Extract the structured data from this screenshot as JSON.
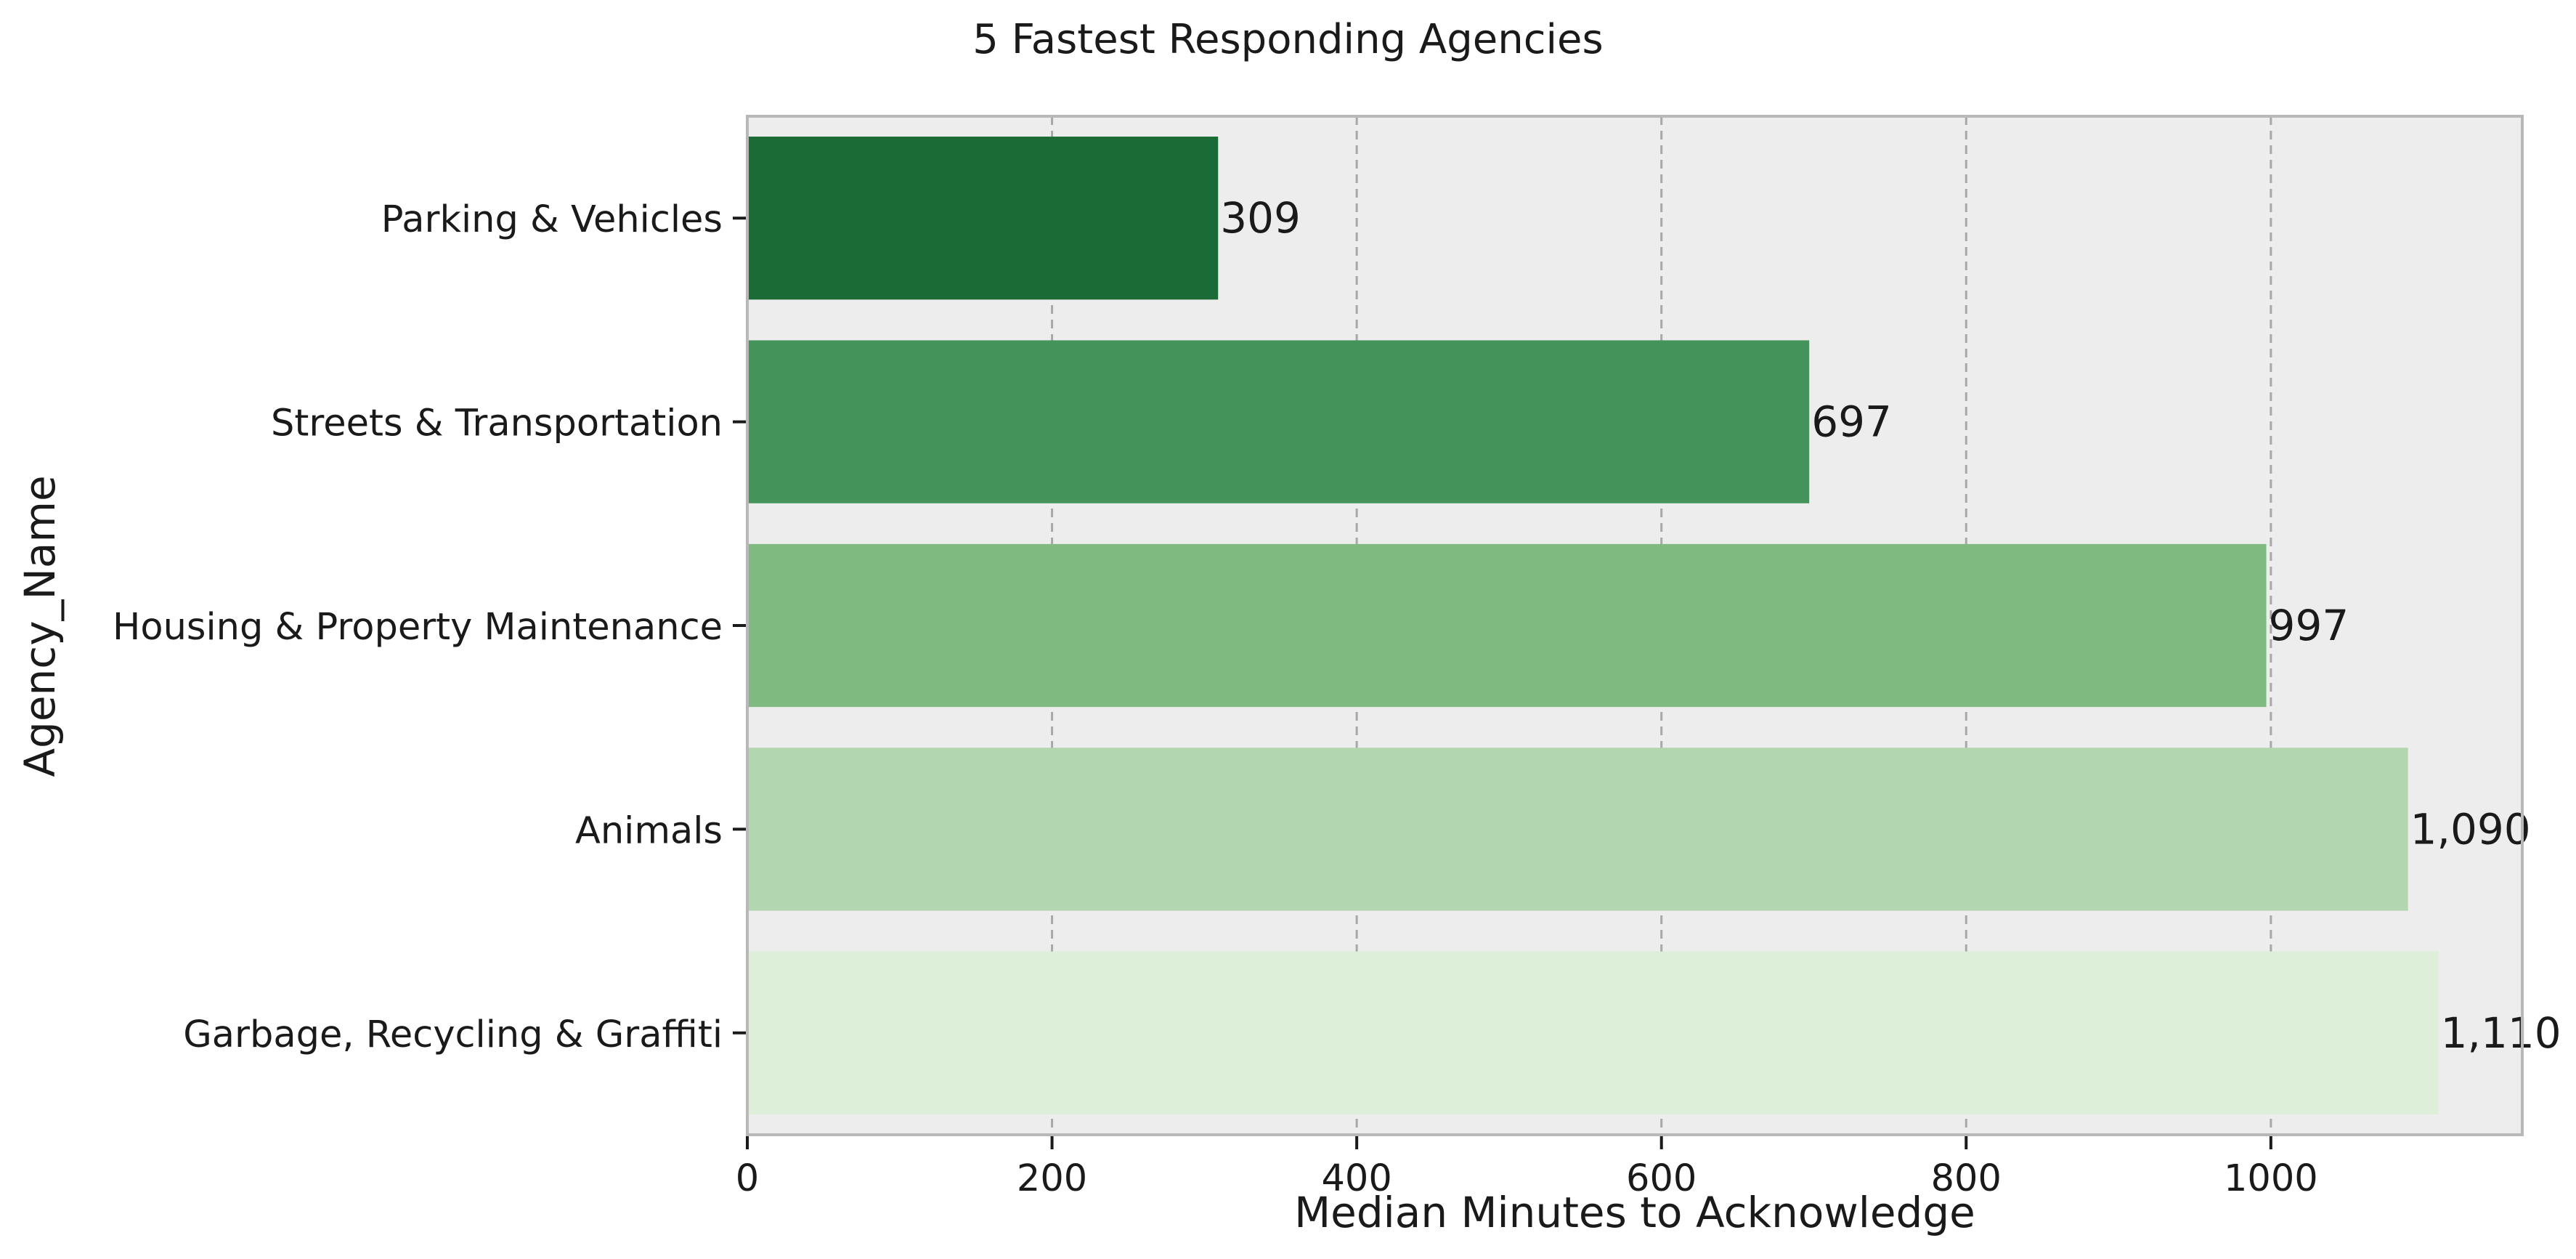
{
  "chart_data": {
    "type": "bar",
    "orientation": "horizontal",
    "title": "5 Fastest Responding Agencies",
    "xlabel": "Median Minutes to Acknowledge",
    "ylabel": "Agency_Name",
    "categories": [
      "Parking & Vehicles",
      "Streets & Transportation",
      "Housing & Property Maintenance",
      "Animals",
      "Garbage, Recycling & Graffiti"
    ],
    "values": [
      309,
      697,
      997,
      1090,
      1110
    ],
    "data_labels": [
      "309",
      "697",
      "997",
      "1,090",
      "1,110"
    ],
    "bar_colors": [
      "#1b6b37",
      "#44935a",
      "#7fba80",
      "#b2d7b0",
      "#ddeed9"
    ],
    "xlim": [
      0,
      1165
    ],
    "xticks": [
      0,
      200,
      400,
      600,
      800,
      1000
    ],
    "xtick_labels": [
      "0",
      "200",
      "400",
      "600",
      "800",
      "1000"
    ],
    "grid": "x-dashed",
    "plot_background": "#ededed",
    "legend": "none"
  }
}
